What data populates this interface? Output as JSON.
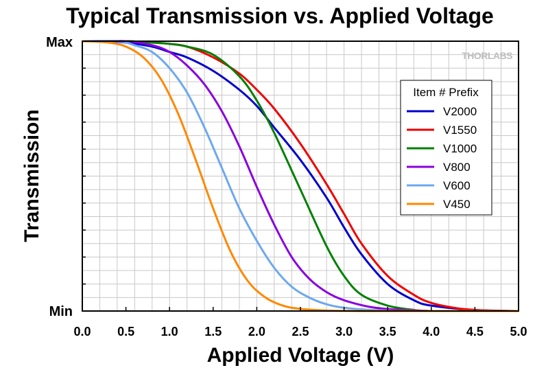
{
  "chart_data": {
    "type": "line",
    "title": "Typical Transmission vs. Applied Voltage",
    "xlabel": "Applied Voltage (V)",
    "ylabel": "Transmission",
    "xlim": [
      0,
      5
    ],
    "ylim": [
      0,
      1
    ],
    "x_ticks": [
      "0.0",
      "0.5",
      "1.0",
      "1.5",
      "2.0",
      "2.5",
      "3.0",
      "3.5",
      "4.0",
      "4.5",
      "5.0"
    ],
    "y_tick_labels": {
      "max": "Max",
      "min": "Min"
    },
    "grid": true,
    "legend_title": "Item # Prefix",
    "legend_position": "right",
    "watermark": "THORLABS",
    "series": [
      {
        "name": "V2000",
        "color": "#0000cc",
        "x": [
          0,
          0.3,
          0.5,
          0.8,
          1.0,
          1.2,
          1.5,
          1.8,
          2.0,
          2.2,
          2.5,
          2.8,
          3.0,
          3.2,
          3.5,
          3.8,
          4.0,
          4.5,
          5.0
        ],
        "y": [
          1.0,
          1.0,
          0.995,
          0.98,
          0.96,
          0.94,
          0.89,
          0.82,
          0.76,
          0.68,
          0.56,
          0.42,
          0.31,
          0.21,
          0.1,
          0.04,
          0.02,
          0.004,
          0.0
        ]
      },
      {
        "name": "V1550",
        "color": "#ee0000",
        "x": [
          0,
          0.5,
          0.8,
          1.0,
          1.2,
          1.5,
          1.8,
          2.0,
          2.2,
          2.5,
          2.8,
          3.0,
          3.2,
          3.5,
          3.8,
          4.0,
          4.3,
          4.6,
          5.0
        ],
        "y": [
          1.0,
          1.0,
          0.995,
          0.99,
          0.98,
          0.94,
          0.88,
          0.82,
          0.75,
          0.62,
          0.47,
          0.36,
          0.25,
          0.13,
          0.06,
          0.03,
          0.01,
          0.002,
          0.0
        ]
      },
      {
        "name": "V1000",
        "color": "#008000",
        "x": [
          0,
          0.5,
          0.8,
          1.0,
          1.2,
          1.5,
          1.8,
          2.0,
          2.2,
          2.5,
          2.8,
          3.0,
          3.2,
          3.5,
          3.8,
          4.0
        ],
        "y": [
          1.0,
          1.0,
          0.995,
          0.99,
          0.98,
          0.95,
          0.87,
          0.78,
          0.66,
          0.45,
          0.24,
          0.13,
          0.06,
          0.02,
          0.004,
          0.0
        ]
      },
      {
        "name": "V800",
        "color": "#8800dd",
        "x": [
          0,
          0.5,
          0.8,
          1.0,
          1.2,
          1.4,
          1.6,
          1.8,
          2.0,
          2.2,
          2.4,
          2.6,
          2.8,
          3.0,
          3.3,
          3.6,
          4.0
        ],
        "y": [
          1.0,
          1.0,
          0.985,
          0.96,
          0.91,
          0.84,
          0.74,
          0.61,
          0.46,
          0.32,
          0.2,
          0.12,
          0.07,
          0.04,
          0.015,
          0.005,
          0.0
        ]
      },
      {
        "name": "V600",
        "color": "#6ca8f0",
        "x": [
          0,
          0.4,
          0.6,
          0.8,
          1.0,
          1.2,
          1.4,
          1.6,
          1.8,
          2.0,
          2.2,
          2.4,
          2.6,
          2.8,
          3.0,
          3.3,
          3.6
        ],
        "y": [
          1.0,
          1.0,
          0.985,
          0.96,
          0.9,
          0.81,
          0.68,
          0.53,
          0.38,
          0.26,
          0.16,
          0.09,
          0.05,
          0.025,
          0.012,
          0.004,
          0.0
        ]
      },
      {
        "name": "V450",
        "color": "#ff8800",
        "x": [
          0,
          0.3,
          0.5,
          0.7,
          0.9,
          1.1,
          1.3,
          1.5,
          1.7,
          1.9,
          2.1,
          2.3,
          2.5,
          2.8,
          3.2
        ],
        "y": [
          1.0,
          0.995,
          0.98,
          0.94,
          0.86,
          0.73,
          0.56,
          0.38,
          0.22,
          0.11,
          0.05,
          0.02,
          0.008,
          0.002,
          0.0
        ]
      }
    ]
  }
}
